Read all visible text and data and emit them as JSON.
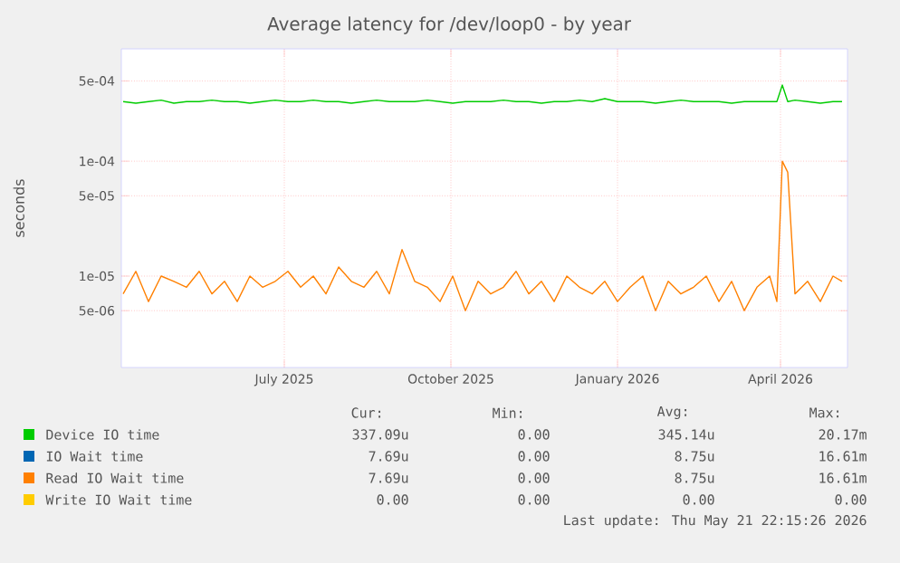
{
  "chart_data": {
    "type": "line",
    "title": "Average latency for /dev/loop0 - by year",
    "ylabel": "seconds",
    "log": true,
    "grid": true,
    "legend": "bottom",
    "marker": "none",
    "line_style": "solid",
    "xlim": [
      "2025-04-17",
      "2026-05-23"
    ],
    "xticks": [
      {
        "value": "2025-07-16",
        "label": "July 2025"
      },
      {
        "value": "2025-10-16",
        "label": "October 2025"
      },
      {
        "value": "2026-01-16",
        "label": "January 2026"
      },
      {
        "value": "2026-04-16",
        "label": "April 2026"
      }
    ],
    "ylim": [
      1.6e-06,
      0.00095
    ],
    "yticks": [
      {
        "value": 5e-06,
        "label": "5e-06"
      },
      {
        "value": 1e-05,
        "label": "1e-05"
      },
      {
        "value": 5e-05,
        "label": "5e-05"
      },
      {
        "value": 0.0001,
        "label": "1e-04"
      },
      {
        "value": 0.0005,
        "label": "5e-04"
      }
    ],
    "x": [
      "2025-04-18",
      "2025-04-25",
      "2025-05-02",
      "2025-05-09",
      "2025-05-16",
      "2025-05-23",
      "2025-05-30",
      "2025-06-06",
      "2025-06-13",
      "2025-06-20",
      "2025-06-27",
      "2025-07-04",
      "2025-07-11",
      "2025-07-18",
      "2025-07-25",
      "2025-08-01",
      "2025-08-08",
      "2025-08-15",
      "2025-08-22",
      "2025-08-29",
      "2025-09-05",
      "2025-09-12",
      "2025-09-19",
      "2025-09-26",
      "2025-10-03",
      "2025-10-10",
      "2025-10-17",
      "2025-10-24",
      "2025-10-31",
      "2025-11-07",
      "2025-11-14",
      "2025-11-21",
      "2025-11-28",
      "2025-12-05",
      "2025-12-12",
      "2025-12-19",
      "2025-12-26",
      "2026-01-02",
      "2026-01-09",
      "2026-01-16",
      "2026-01-23",
      "2026-01-30",
      "2026-02-06",
      "2026-02-13",
      "2026-02-20",
      "2026-02-27",
      "2026-03-06",
      "2026-03-13",
      "2026-03-20",
      "2026-03-27",
      "2026-04-03",
      "2026-04-10",
      "2026-04-14",
      "2026-04-17",
      "2026-04-20",
      "2026-04-24",
      "2026-05-01",
      "2026-05-08",
      "2026-05-15",
      "2026-05-20"
    ],
    "series": [
      {
        "name": "Device IO time",
        "color": "#00cc00",
        "values": [
          0.00033,
          0.00032,
          0.00033,
          0.00034,
          0.00032,
          0.00033,
          0.00033,
          0.00034,
          0.00033,
          0.00033,
          0.00032,
          0.00033,
          0.00034,
          0.00033,
          0.00033,
          0.00034,
          0.00033,
          0.00033,
          0.00032,
          0.00033,
          0.00034,
          0.00033,
          0.00033,
          0.00033,
          0.00034,
          0.00033,
          0.00032,
          0.00033,
          0.00033,
          0.00033,
          0.00034,
          0.00033,
          0.00033,
          0.00032,
          0.00033,
          0.00033,
          0.00034,
          0.00033,
          0.00035,
          0.00033,
          0.00033,
          0.00033,
          0.00032,
          0.00033,
          0.00034,
          0.00033,
          0.00033,
          0.00033,
          0.00032,
          0.00033,
          0.00033,
          0.00033,
          0.00033,
          0.00046,
          0.00033,
          0.00034,
          0.00033,
          0.00032,
          0.00033,
          0.00033
        ]
      },
      {
        "name": "IO Wait time",
        "color": "#0066b3",
        "values": [
          null,
          null,
          null,
          null,
          null,
          null,
          null,
          null,
          null,
          null,
          null,
          null,
          null,
          null,
          null,
          null,
          null,
          null,
          null,
          null,
          null,
          null,
          null,
          null,
          null,
          null,
          null,
          null,
          null,
          null,
          null,
          null,
          null,
          null,
          null,
          null,
          null,
          null,
          null,
          null,
          null,
          null,
          null,
          null,
          null,
          null,
          null,
          null,
          null,
          null,
          null,
          null,
          null,
          null,
          null,
          null,
          null,
          null,
          null,
          null
        ]
      },
      {
        "name": "Read IO Wait time",
        "color": "#ff8000",
        "values": [
          7e-06,
          1.1e-05,
          6e-06,
          1e-05,
          9e-06,
          8e-06,
          1.1e-05,
          7e-06,
          9e-06,
          6e-06,
          1e-05,
          8e-06,
          9e-06,
          1.1e-05,
          8e-06,
          1e-05,
          7e-06,
          1.2e-05,
          9e-06,
          8e-06,
          1.1e-05,
          7e-06,
          1.7e-05,
          9e-06,
          8e-06,
          6e-06,
          1e-05,
          5e-06,
          9e-06,
          7e-06,
          8e-06,
          1.1e-05,
          7e-06,
          9e-06,
          6e-06,
          1e-05,
          8e-06,
          7e-06,
          9e-06,
          6e-06,
          8e-06,
          1e-05,
          5e-06,
          9e-06,
          7e-06,
          8e-06,
          1e-05,
          6e-06,
          9e-06,
          5e-06,
          8e-06,
          1e-05,
          6e-06,
          0.0001,
          8e-05,
          7e-06,
          9e-06,
          6e-06,
          1e-05,
          9e-06
        ]
      },
      {
        "name": "Write IO Wait time",
        "color": "#ffcc00",
        "values": [
          null,
          null,
          null,
          null,
          null,
          null,
          null,
          null,
          null,
          null,
          null,
          null,
          null,
          null,
          null,
          null,
          null,
          null,
          null,
          null,
          null,
          null,
          null,
          null,
          null,
          null,
          null,
          null,
          null,
          null,
          null,
          null,
          null,
          null,
          null,
          null,
          null,
          null,
          null,
          null,
          null,
          null,
          null,
          null,
          null,
          null,
          null,
          null,
          null,
          null,
          null,
          null,
          null,
          null,
          null,
          null,
          null,
          null,
          null,
          null
        ]
      }
    ],
    "annotations": [
      "Cur:",
      "Min:",
      "Avg:",
      "Max:",
      "337.09u",
      "0.00",
      "345.14u",
      "20.17m",
      "7.69u",
      "0.00",
      "8.75u",
      "16.61m",
      "7.69u",
      "0.00",
      "8.75u",
      "16.61m",
      "0.00",
      "0.00",
      "0.00",
      "0.00",
      "Last update: Thu May 21 22:15:26 2026"
    ]
  }
}
